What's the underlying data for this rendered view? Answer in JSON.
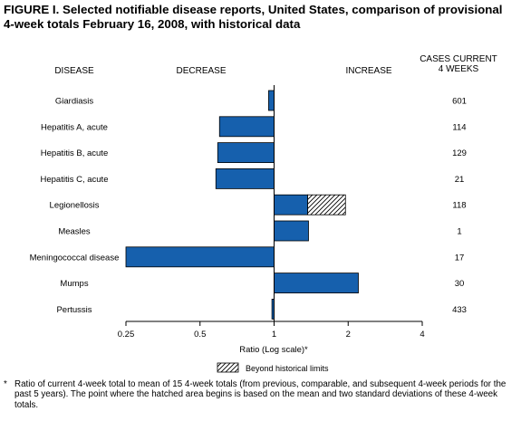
{
  "figure": {
    "title_line1": "FIGURE I. Selected notifiable disease reports, United States, comparison of provisional",
    "title_line2": "4-week totals February 16, 2008, with historical data"
  },
  "headers": {
    "disease": "DISEASE",
    "decrease": "DECREASE",
    "increase": "INCREASE",
    "cases_line1": "CASES CURRENT",
    "cases_line2": "4 WEEKS"
  },
  "legend": {
    "hatched_label": "Beyond historical limits"
  },
  "footnote": {
    "marker": "*",
    "text": "Ratio of current 4-week total to mean of 15 4-week totals (from previous, comparable, and subsequent 4-week periods for the past 5 years). The point where the hatched area begins is based on the mean and two standard deviations of these 4-week totals."
  },
  "colors": {
    "bar_fill": "#1660ad",
    "bar_stroke": "#000000",
    "hatch": "#000000"
  },
  "chart_data": {
    "type": "bar",
    "orientation": "horizontal",
    "xscale": "log2",
    "xlim": [
      0.25,
      4
    ],
    "baseline": 1,
    "xlabel": "Ratio (Log scale)*",
    "xticks": [
      0.25,
      0.5,
      1,
      2,
      4
    ],
    "xtick_labels": [
      "0.25",
      "0.5",
      "1",
      "2",
      "4"
    ],
    "categories": [
      "Giardiasis",
      "Hepatitis A, acute",
      "Hepatitis B, acute",
      "Hepatitis C, acute",
      "Legionellosis",
      "Measles",
      "Meningococcal disease",
      "Mumps",
      "Pertussis"
    ],
    "values": [
      0.95,
      0.6,
      0.59,
      0.58,
      1.95,
      1.38,
      0.25,
      2.2,
      0.98
    ],
    "hatched_from": [
      null,
      null,
      null,
      null,
      1.37,
      null,
      null,
      null,
      null
    ],
    "cases_current_4_weeks": [
      "601",
      "114",
      "129",
      "21",
      "118",
      "1",
      "17",
      "30",
      "433"
    ]
  }
}
